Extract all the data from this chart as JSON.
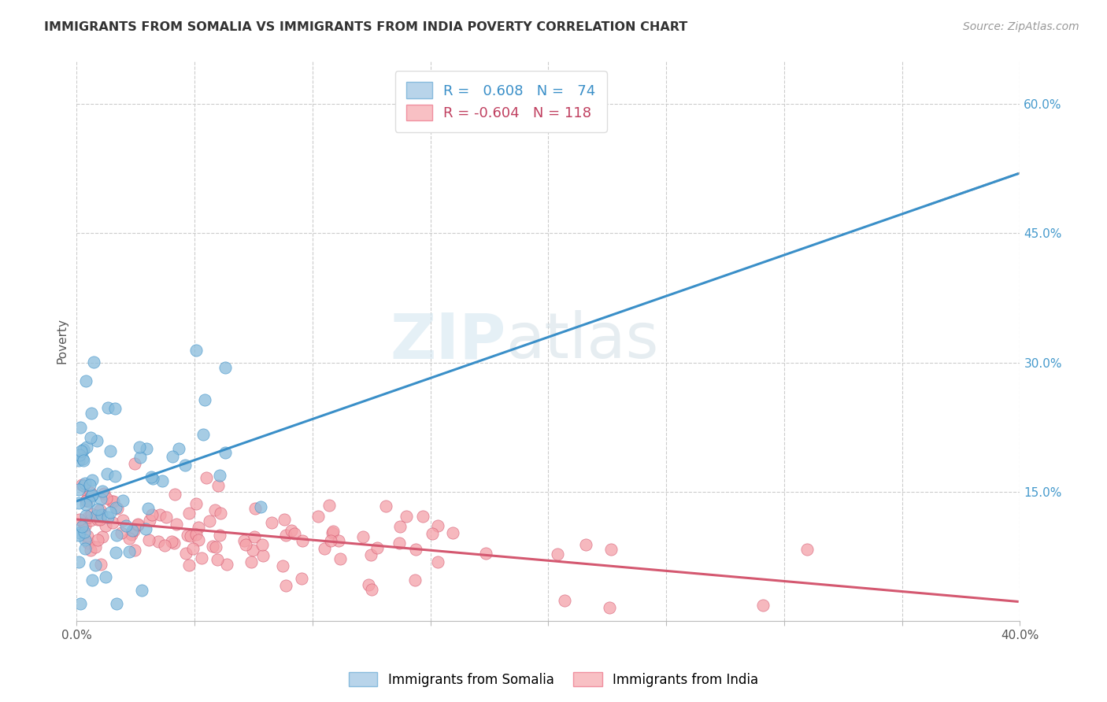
{
  "title": "IMMIGRANTS FROM SOMALIA VS IMMIGRANTS FROM INDIA POVERTY CORRELATION CHART",
  "source": "Source: ZipAtlas.com",
  "ylabel": "Poverty",
  "x_min": 0.0,
  "x_max": 0.4,
  "y_min": 0.0,
  "y_max": 0.65,
  "x_ticks": [
    0.0,
    0.05,
    0.1,
    0.15,
    0.2,
    0.25,
    0.3,
    0.35,
    0.4
  ],
  "x_label_only_ends": [
    0.0,
    0.4
  ],
  "x_label_ends_text": [
    "0.0%",
    "40.0%"
  ],
  "y_ticks_right": [
    0.15,
    0.3,
    0.45,
    0.6
  ],
  "y_tick_labels_right": [
    "15.0%",
    "30.0%",
    "45.0%",
    "60.0%"
  ],
  "somalia_color": "#89bcdc",
  "somalia_line_color": "#3a8fc8",
  "india_color": "#f4a0a8",
  "india_line_color": "#d45870",
  "somalia_R": 0.608,
  "somalia_N": 74,
  "india_R": -0.604,
  "india_N": 118,
  "legend_label_somalia": "Immigrants from Somalia",
  "legend_label_india": "Immigrants from India",
  "watermark_zip": "ZIP",
  "watermark_atlas": "atlas",
  "background_color": "#ffffff",
  "grid_color": "#cccccc",
  "somalia_line_intercept": 0.132,
  "somalia_line_slope": 1.18,
  "india_line_intercept": 0.118,
  "india_line_slope": -0.27
}
